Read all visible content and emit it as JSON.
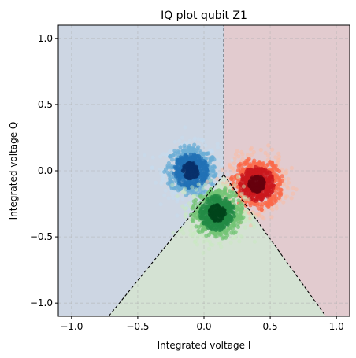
{
  "chart_data": {
    "type": "scatter",
    "title": "IQ plot qubit Z1",
    "xlabel": "Integrated voltage I",
    "ylabel": "Integrated voltage Q",
    "xlim": [
      -1.1,
      1.1
    ],
    "ylim": [
      -1.1,
      1.1
    ],
    "x_ticks": [
      -1.0,
      -0.5,
      0.0,
      0.5,
      1.0
    ],
    "y_ticks": [
      -1.0,
      -0.5,
      0.0,
      0.5,
      1.0
    ],
    "x_tick_labels": [
      "−1.0",
      "−0.5",
      "0.0",
      "0.5",
      "1.0"
    ],
    "y_tick_labels": [
      "−1.0",
      "−0.5",
      "0.0",
      "0.5",
      "1.0"
    ],
    "grid": true,
    "decision_center": [
      0.15,
      -0.03
    ],
    "boundaries": [
      {
        "to": [
          0.15,
          1.1
        ]
      },
      {
        "to": [
          -0.72,
          -1.1
        ]
      },
      {
        "to": [
          0.92,
          -1.1
        ]
      }
    ],
    "regions": [
      {
        "state": "0",
        "color": "#cdd6e3"
      },
      {
        "state": "1",
        "color": "#e2cbcf"
      },
      {
        "state": "2",
        "color": "#d4e2d3"
      }
    ],
    "series": [
      {
        "center": [
          -0.1,
          0.0
        ],
        "spread": 0.1,
        "colors": [
          "#c6dbef",
          "#6baed6",
          "#2171b5",
          "#08306b"
        ]
      },
      {
        "center": [
          0.4,
          -0.1
        ],
        "spread": 0.1,
        "colors": [
          "#fcbba1",
          "#fb6a4a",
          "#cb181d",
          "#67000d"
        ]
      },
      {
        "center": [
          0.1,
          -0.32
        ],
        "spread": 0.1,
        "colors": [
          "#c7e9c0",
          "#74c476",
          "#238b45",
          "#00441b"
        ]
      }
    ]
  }
}
